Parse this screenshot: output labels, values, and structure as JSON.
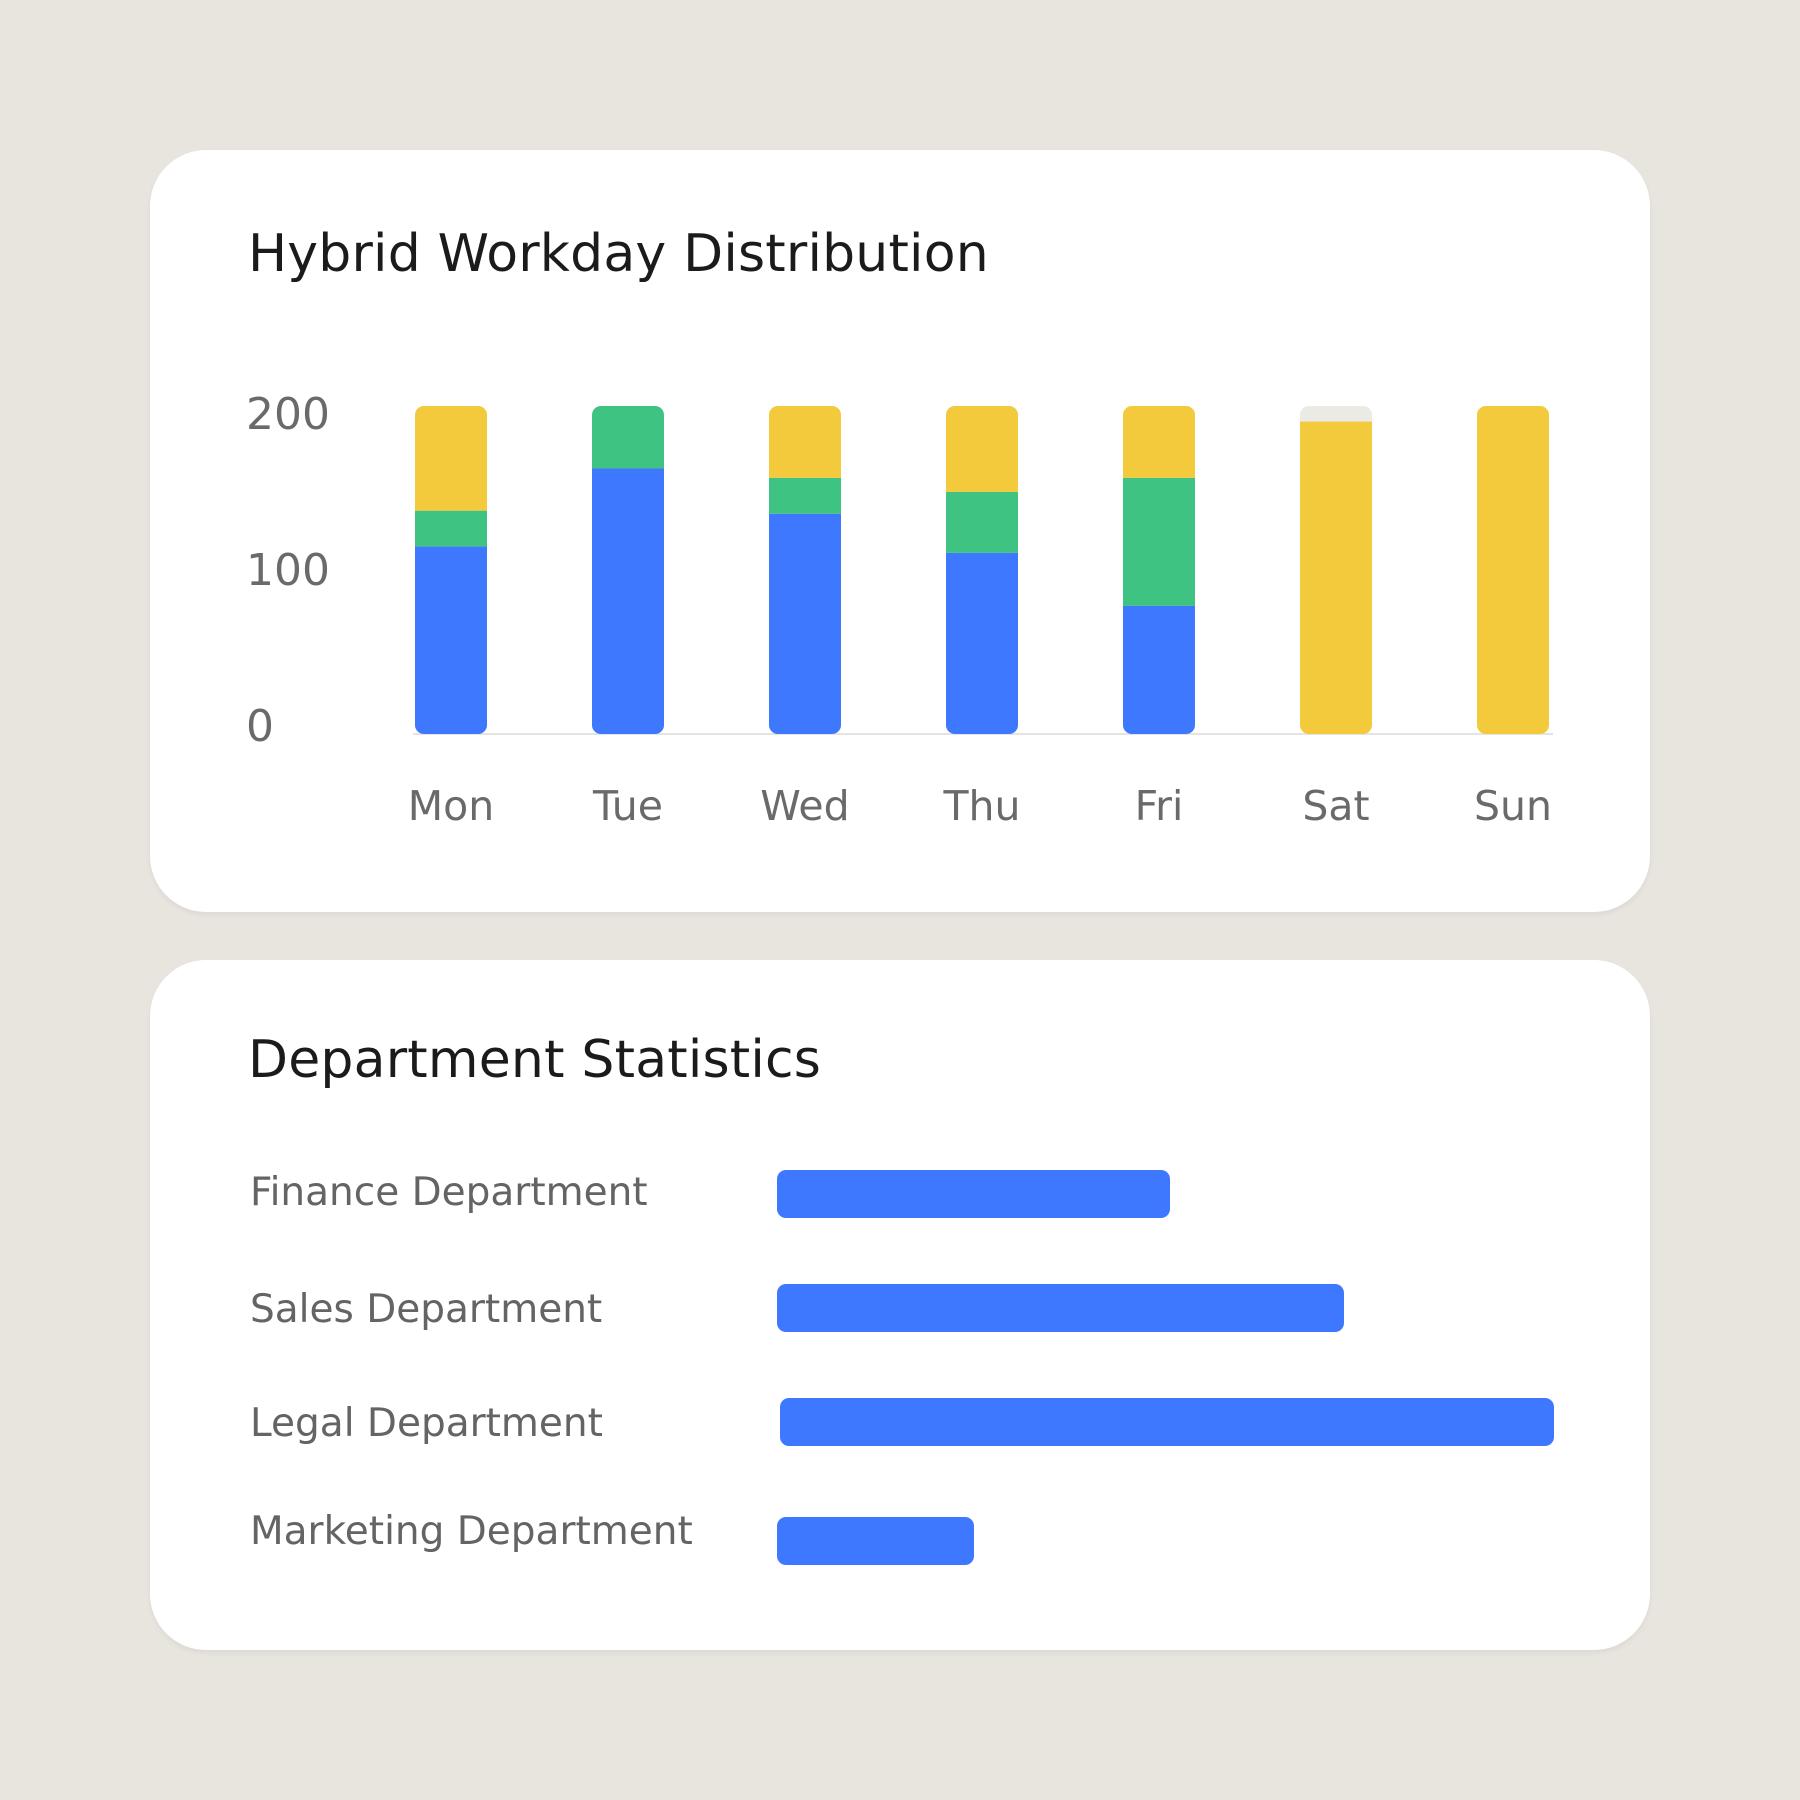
{
  "colors": {
    "background": "#E8E5DF",
    "card": "#FFFFFF",
    "remote": "#3E78FF",
    "hybrid": "#3FC383",
    "office": "#F3CA3B",
    "track": "#ECEAE5"
  },
  "chart_data": [
    {
      "type": "bar",
      "stacked": true,
      "title": "Hybrid Workday Distribution",
      "categories": [
        "Mon",
        "Tue",
        "Wed",
        "Thu",
        "Fri",
        "Sat",
        "Sun"
      ],
      "series": [
        {
          "color": "#3E78FF",
          "values": [
            120,
            170,
            141,
            116,
            82,
            0,
            0
          ]
        },
        {
          "color": "#3FC383",
          "values": [
            23,
            40,
            23,
            39,
            82,
            0,
            0
          ]
        },
        {
          "color": "#F3CA3B",
          "values": [
            67,
            0,
            46,
            55,
            46,
            200,
            210
          ]
        }
      ],
      "bar_max": 210,
      "yticks": [
        "200",
        "100",
        "0"
      ],
      "ylim": [
        0,
        210
      ],
      "grid": false,
      "legend": "none"
    },
    {
      "type": "bar",
      "orientation": "horizontal",
      "title": "Department Statistics",
      "categories": [
        "Finance Department",
        "Sales Department",
        "Legal Department",
        "Marketing Department"
      ],
      "values": [
        0.508,
        0.732,
        1.0,
        0.255
      ],
      "value_scale": "fraction of longest bar",
      "color": "#3E78FF"
    }
  ]
}
